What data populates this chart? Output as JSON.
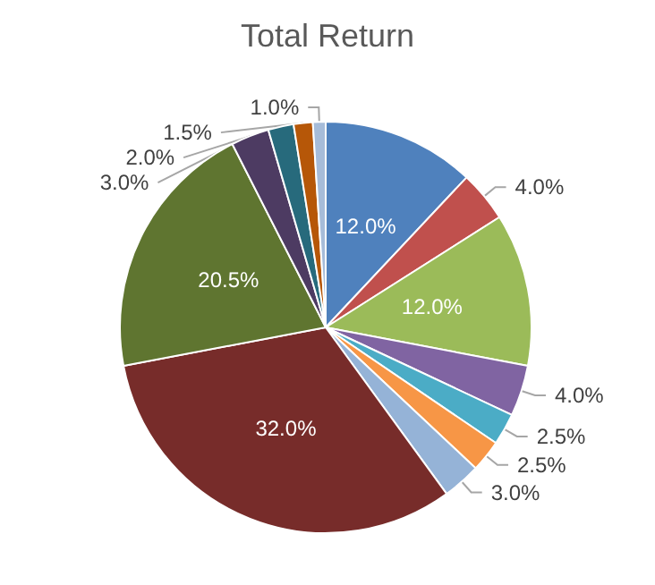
{
  "chart_data": {
    "type": "pie",
    "title": "Total Return",
    "categories": [
      null,
      null,
      null,
      null,
      null,
      null,
      null,
      null,
      null,
      null,
      null,
      null,
      null
    ],
    "values": [
      12.0,
      4.0,
      12.0,
      4.0,
      2.5,
      2.5,
      3.0,
      32.0,
      20.5,
      3.0,
      2.0,
      1.5,
      1.0
    ],
    "value_labels": [
      "12.0%",
      "4.0%",
      "12.0%",
      "4.0%",
      "2.5%",
      "2.5%",
      "3.0%",
      "32.0%",
      "20.5%",
      "3.0%",
      "2.0%",
      "1.5%",
      "1.0%"
    ],
    "colors": [
      "#4f81bd",
      "#c0504d",
      "#9bbb59",
      "#8064a2",
      "#4bacc6",
      "#f79646",
      "#95b3d7",
      "#772c2a",
      "#5f7530",
      "#4d3b62",
      "#276a7c",
      "#b65708",
      "#a6bcd9"
    ],
    "legend": false
  }
}
